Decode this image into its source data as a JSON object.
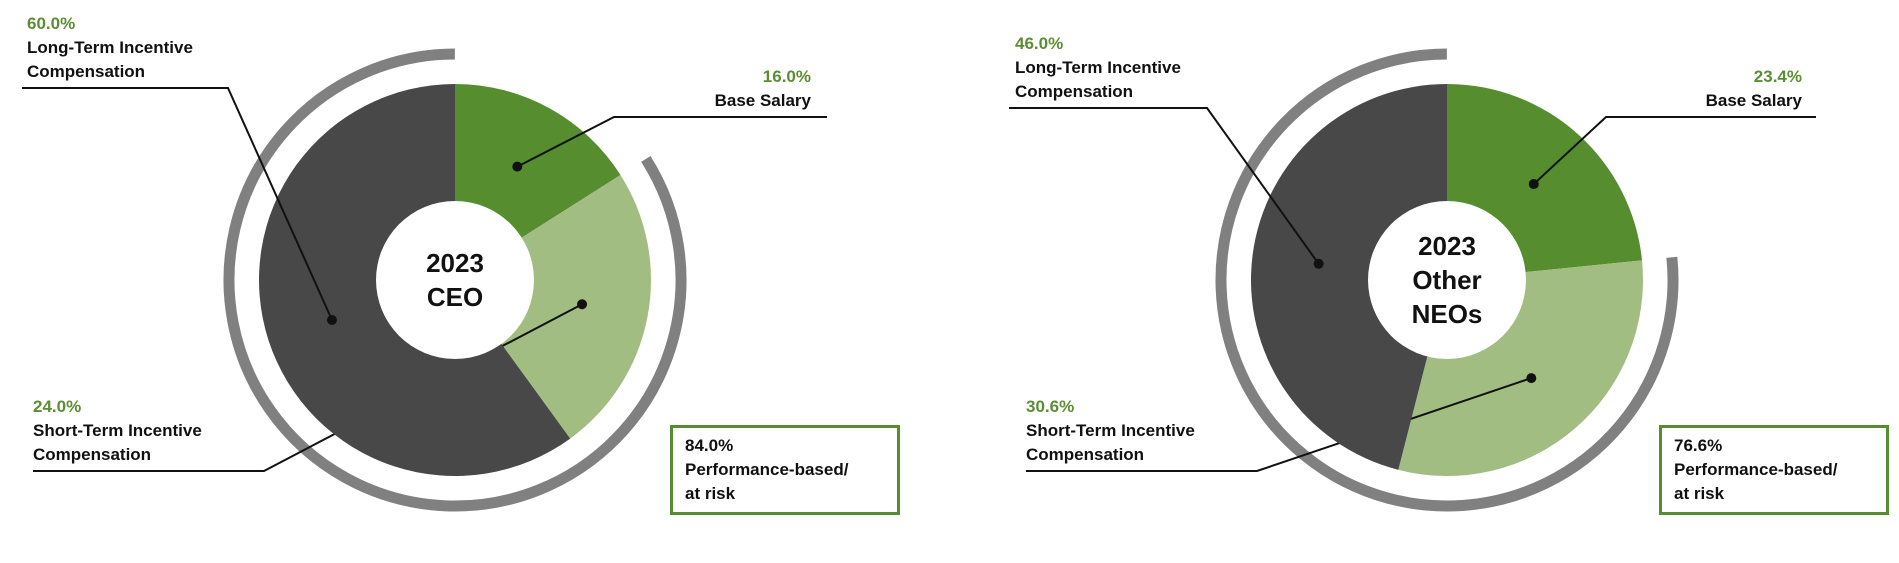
{
  "chart_data": [
    {
      "type": "pie",
      "center_label": "2023 CEO",
      "categories": [
        "Base Salary",
        "Short-Term Incentive Compensation",
        "Long-Term Incentive Compensation"
      ],
      "values": [
        16.0,
        24.0,
        60.0
      ],
      "value_labels": [
        "16.0%",
        "24.0%",
        "60.0%"
      ],
      "colors": [
        "#568d2f",
        "#a1bd81",
        "#484848"
      ],
      "annotation": {
        "value": 84.0,
        "label": "84.0%",
        "text": "Performance-based/ at risk"
      }
    },
    {
      "type": "pie",
      "center_label": "2023 Other NEOs",
      "categories": [
        "Base Salary",
        "Short-Term Incentive Compensation",
        "Long-Term Incentive Compensation"
      ],
      "values": [
        23.4,
        30.6,
        46.0
      ],
      "value_labels": [
        "23.4%",
        "30.6%",
        "46.0%"
      ],
      "colors": [
        "#568d2f",
        "#a1bd81",
        "#484848"
      ],
      "annotation": {
        "value": 76.6,
        "label": "76.6%",
        "text": "Performance-based/ at risk"
      }
    }
  ]
}
